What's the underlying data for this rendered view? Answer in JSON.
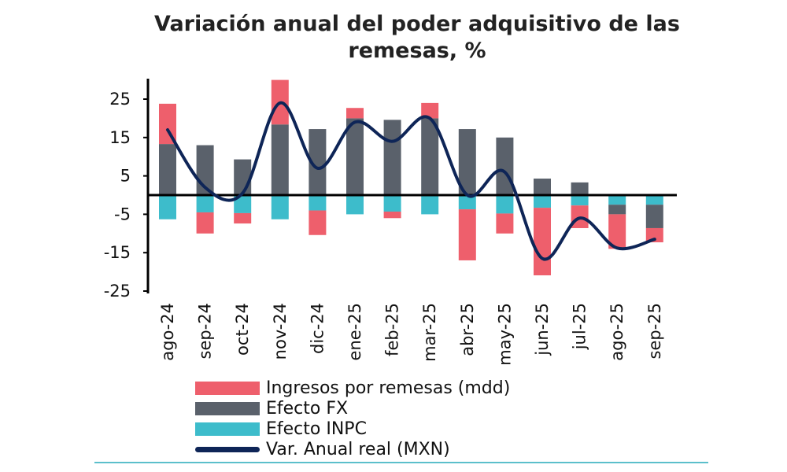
{
  "chart_data": {
    "type": "bar",
    "stacked": true,
    "title": "Variación anual del poder adquisitivo de las remesas, %",
    "categories": [
      "ago-24",
      "sep-24",
      "oct-24",
      "nov-24",
      "dic-24",
      "ene-25",
      "feb-25",
      "mar-25",
      "abr-25",
      "may-25",
      "jun-25",
      "jul-25",
      "ago-25",
      "sep-25"
    ],
    "ylim": [
      -25,
      30
    ],
    "yticks": [
      25,
      15,
      5,
      -5,
      -15,
      -25
    ],
    "grid": false,
    "legend_position": "bottom",
    "series": [
      {
        "name": "Efecto INPC",
        "kind": "bar",
        "color": "#3dbccb",
        "values": [
          -6.3,
          -4.5,
          -4.7,
          -6.3,
          -4.0,
          -5.0,
          -4.3,
          -5.0,
          -3.7,
          -4.8,
          -3.3,
          -2.7,
          -2.5,
          -2.5
        ]
      },
      {
        "name": "Efecto FX",
        "kind": "bar",
        "color": "#5a616b",
        "values": [
          13.3,
          13.0,
          9.3,
          18.4,
          17.2,
          20.0,
          19.6,
          20.0,
          17.2,
          15.0,
          4.3,
          3.3,
          -2.5,
          -6.1
        ]
      },
      {
        "name": "Ingresos por remesas (mdd)",
        "kind": "bar",
        "color": "#ee5f6c",
        "values": [
          10.5,
          -5.5,
          -2.7,
          11.6,
          -6.4,
          2.7,
          -1.7,
          4.0,
          -13.3,
          -5.2,
          -17.6,
          -5.9,
          -9.0,
          -3.7
        ]
      },
      {
        "name": "Var. Anual real (MXN)",
        "kind": "line",
        "color": "#0e2557",
        "values": [
          17.0,
          2.0,
          0.5,
          24.0,
          7.0,
          19.0,
          14.0,
          20.0,
          0.0,
          6.0,
          -16.5,
          -6.0,
          -13.8,
          -11.5
        ]
      }
    ],
    "legend_order": [
      "Ingresos por remesas (mdd)",
      "Efecto FX",
      "Efecto INPC",
      "Var. Anual real (MXN)"
    ]
  }
}
